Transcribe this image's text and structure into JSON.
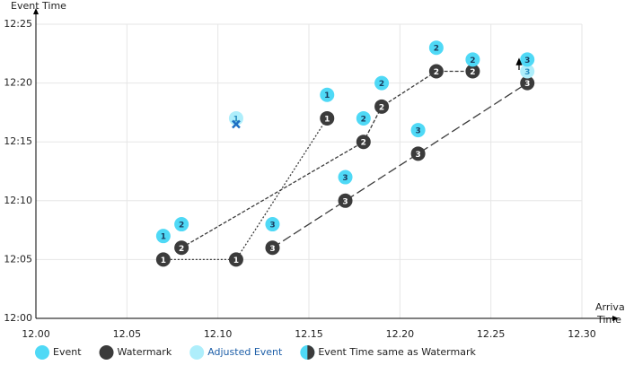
{
  "chart_data": {
    "type": "scatter",
    "xlabel": [
      "Arrival",
      "Time"
    ],
    "ylabel": "Event Time",
    "xlim": [
      0,
      30
    ],
    "xticks": [
      {
        "value": 0,
        "label": "12.00"
      },
      {
        "value": 5,
        "label": "12.05"
      },
      {
        "value": 10,
        "label": "12.10"
      },
      {
        "value": 15,
        "label": "12.15"
      },
      {
        "value": 20,
        "label": "12.20"
      },
      {
        "value": 25,
        "label": "12.25"
      },
      {
        "value": 30,
        "label": "12.30"
      }
    ],
    "ylim": [
      0,
      25
    ],
    "yticks": [
      {
        "value": 0,
        "label": "12:00"
      },
      {
        "value": 5,
        "label": "12:05"
      },
      {
        "value": 10,
        "label": "12:10"
      },
      {
        "value": 15,
        "label": "12:15"
      },
      {
        "value": 20,
        "label": "12:20"
      },
      {
        "value": 25,
        "label": "12:25"
      }
    ],
    "grid": true,
    "events": {
      "color": "#4fd9f6",
      "x": [
        7,
        8,
        13,
        16,
        18,
        17,
        19,
        21,
        22,
        24,
        27
      ],
      "values": [
        7,
        8,
        8,
        19,
        17,
        12,
        20,
        16,
        23,
        22,
        22
      ],
      "labels": [
        "1",
        "2",
        "3",
        "1",
        "2",
        "3",
        "2",
        "3",
        "2",
        "2",
        "3"
      ]
    },
    "adjusted_events": {
      "color": "#aeeefb",
      "x": [
        11,
        27
      ],
      "values": [
        17,
        21
      ],
      "labels": [
        "1",
        "3"
      ]
    },
    "dropped": {
      "color": "#1e6fc4",
      "x": [
        11
      ],
      "values": [
        16.5
      ]
    },
    "watermarks": {
      "color": "#3b3b3b",
      "series": [
        {
          "id": "1",
          "dash": "2 2",
          "x": [
            7,
            11,
            16
          ],
          "values": [
            5,
            5,
            17
          ]
        },
        {
          "id": "2",
          "dash": "4 2",
          "x": [
            8,
            18,
            19,
            22,
            24
          ],
          "values": [
            6,
            15,
            18,
            21,
            21
          ]
        },
        {
          "id": "3",
          "dash": "10 4",
          "x": [
            13,
            17,
            21,
            27
          ],
          "values": [
            6,
            10,
            14,
            20
          ]
        }
      ]
    },
    "legend": [
      {
        "label": "Event",
        "color": "#4fd9f6",
        "text_color": "#222222"
      },
      {
        "label": "Watermark",
        "color": "#3b3b3b",
        "text_color": "#222222"
      },
      {
        "label": "Adjusted Event",
        "color": "#aeeefb",
        "text_color": "#1e5fa8"
      },
      {
        "label": "Event Time same as Watermark",
        "color": "#4fd9f6",
        "color2": "#3b3b3b",
        "text_color": "#222222"
      }
    ]
  }
}
